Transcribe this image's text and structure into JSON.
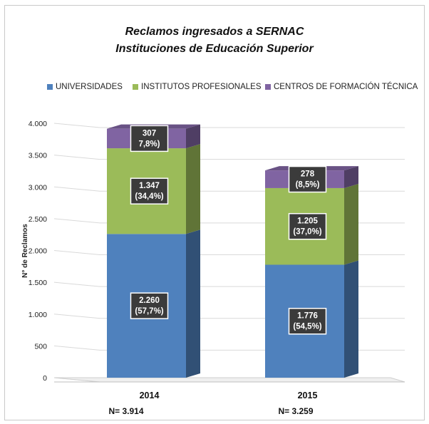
{
  "title_line1": "Reclamos ingresados  a SERNAC",
  "title_line2": "Instituciones de Educación Superior",
  "legend": [
    {
      "label": "UNIVERSIDADES",
      "color": "#4f81bd"
    },
    {
      "label": "INSTITUTOS PROFESIONALES",
      "color": "#9bbb59"
    },
    {
      "label": "CENTROS DE FORMACIÓN TÉCNICA",
      "color": "#8064a2"
    }
  ],
  "totals": [
    "N= 3.914",
    "N= 3.259"
  ],
  "chart_data": {
    "type": "bar",
    "stacked": true,
    "three_d": true,
    "categories": [
      "2014",
      "2015"
    ],
    "series": [
      {
        "name": "UNIVERSIDADES",
        "values": [
          2260,
          1776
        ],
        "labels": [
          "2.260\n(57,7%)",
          "1.776\n(54,5%)"
        ],
        "color": "#4f81bd"
      },
      {
        "name": "INSTITUTOS PROFESIONALES",
        "values": [
          1347,
          1205
        ],
        "labels": [
          "1.347\n(34,4%)",
          "1.205\n(37,0%)"
        ],
        "color": "#9bbb59"
      },
      {
        "name": "CENTROS DE FORMACIÓN TÉCNICA",
        "values": [
          307,
          278
        ],
        "labels": [
          "307\n7,8%)",
          "278\n(8,5%)"
        ],
        "color": "#8064a2"
      }
    ],
    "ylabel": "N° de Reclamos",
    "ylim": [
      0,
      4000
    ],
    "yticks": [
      0,
      500,
      1000,
      1500,
      2000,
      2500,
      3000,
      3500,
      4000
    ],
    "ytick_labels": [
      "0",
      "500",
      "1.000",
      "1.500",
      "2.000",
      "2.500",
      "3.000",
      "3.500",
      "4.000"
    ],
    "grid": true,
    "legend_position": "top"
  }
}
